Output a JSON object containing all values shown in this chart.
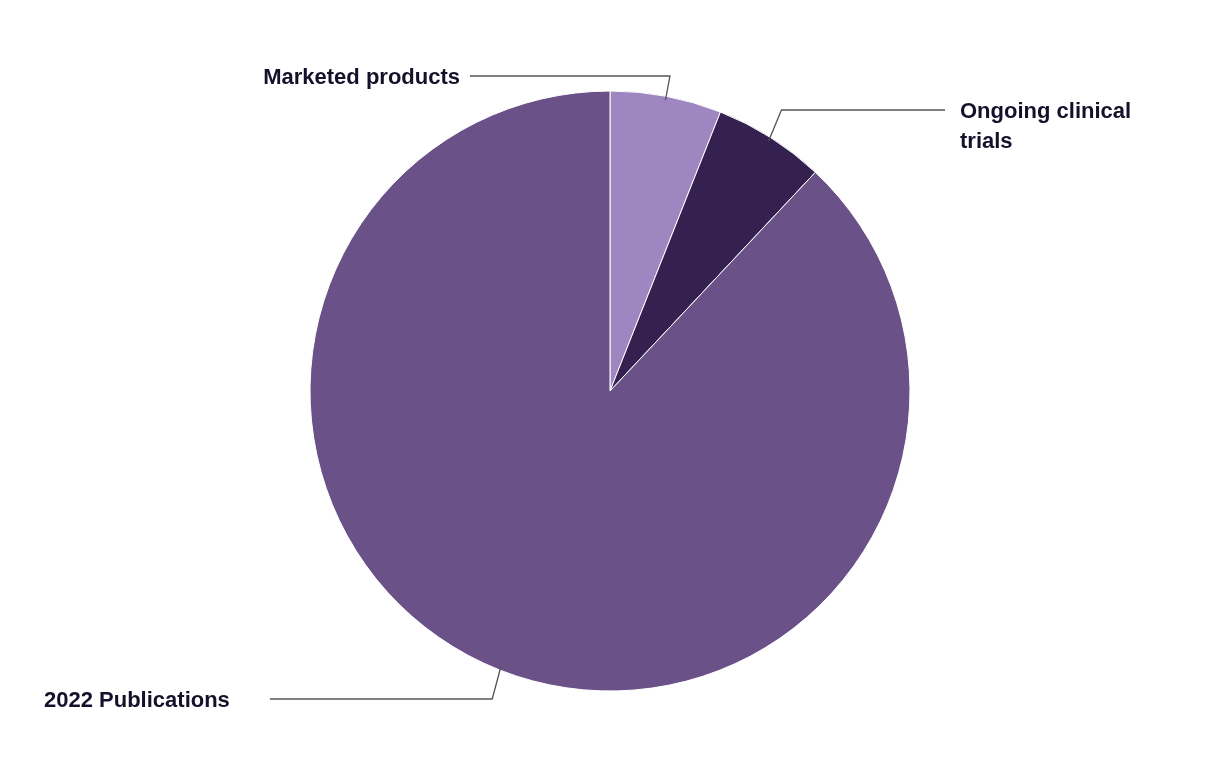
{
  "chart_data": {
    "type": "pie",
    "categories": [
      "Marketed products",
      "Ongoing clinical trials",
      "2022 Publications"
    ],
    "values": [
      6,
      6,
      88
    ],
    "colors": [
      "#9e87c0",
      "#342150",
      "#6a5289"
    ]
  }
}
